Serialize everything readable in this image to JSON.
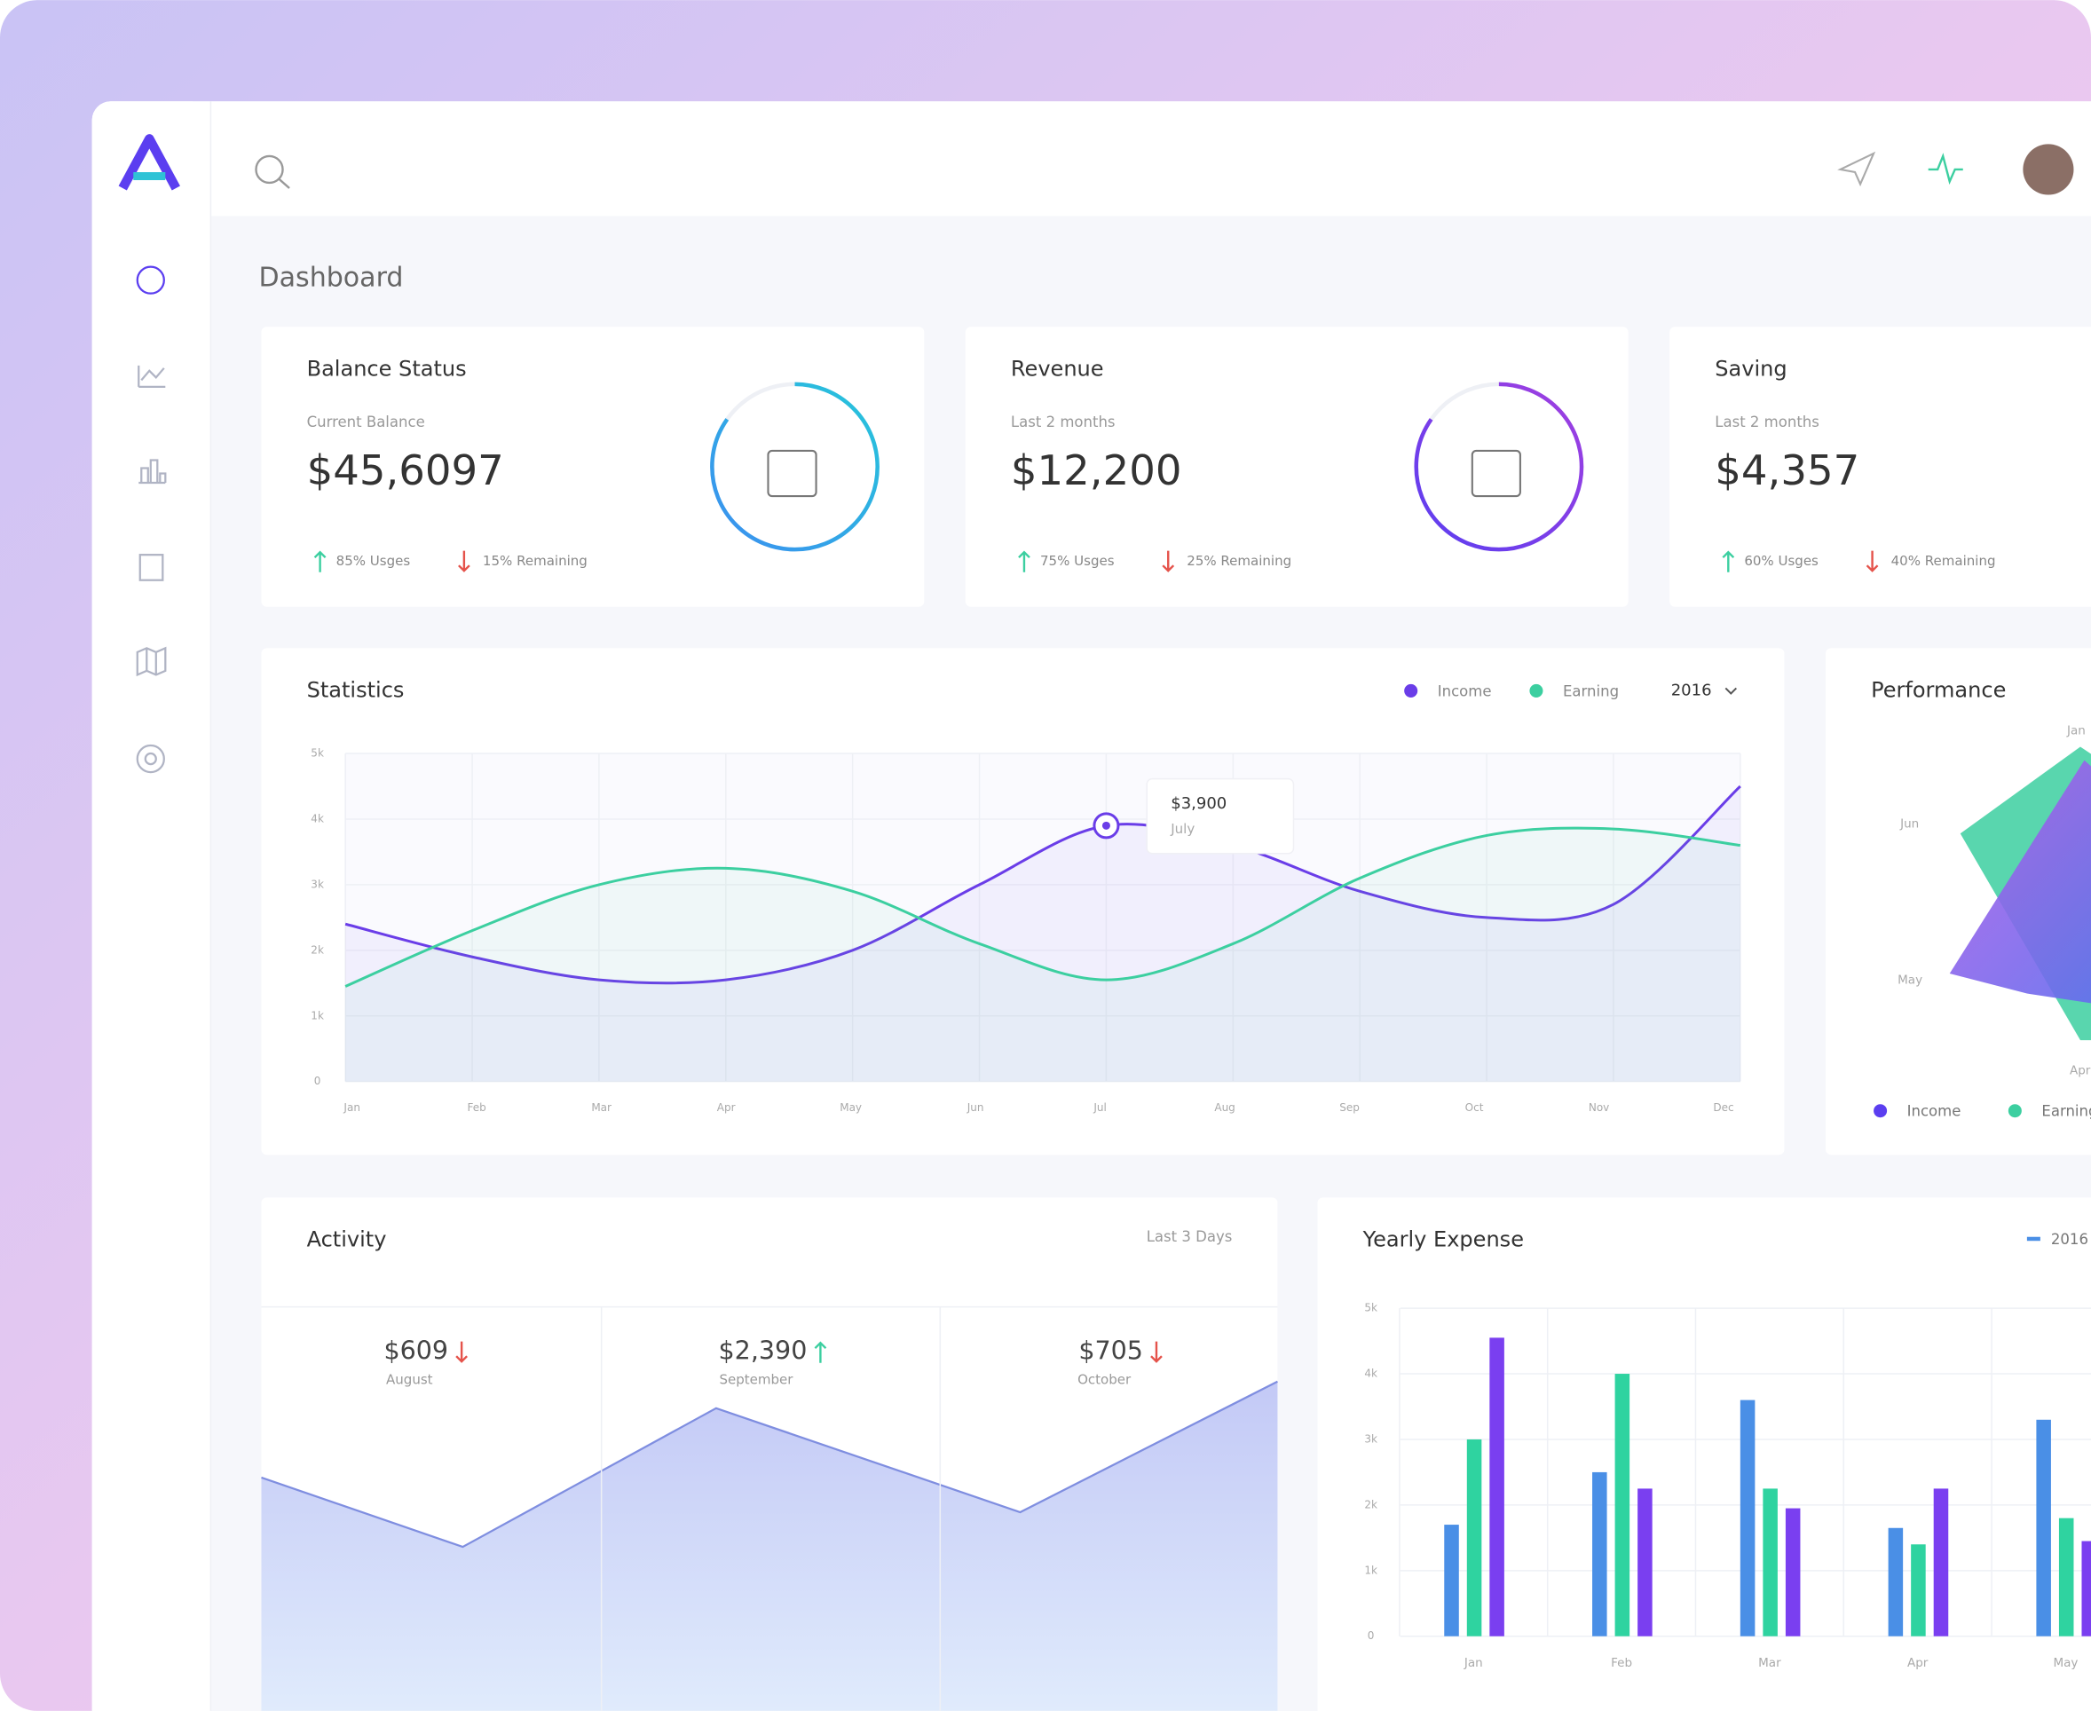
{
  "page_title": "Dashboard",
  "cards": [
    {
      "title": "Balance Status",
      "subtitle": "Current Balance",
      "value": "$45,6097",
      "usage": "85% Usges",
      "remaining": "15% Remaining"
    },
    {
      "title": "Revenue",
      "subtitle": "Last 2 months",
      "value": "$12,200",
      "usage": "75% Usges",
      "remaining": "25% Remaining"
    },
    {
      "title": "Saving",
      "subtitle": "Last 2 months",
      "value": "$4,357",
      "usage": "60% Usges",
      "remaining": "40% Remaining"
    }
  ],
  "statistics": {
    "title": "Statistics",
    "year": "2016",
    "tooltip": {
      "value": "$3,900",
      "label": "July"
    },
    "chart_data": {
      "type": "line",
      "categories": [
        "Jan",
        "Feb",
        "Mar",
        "Apr",
        "May",
        "Jun",
        "Jul",
        "Aug",
        "Sep",
        "Oct",
        "Nov",
        "Dec"
      ],
      "series": [
        {
          "name": "Income",
          "color": "#6a3de8",
          "values": [
            2400,
            1900,
            1550,
            1550,
            2000,
            3000,
            3900,
            3600,
            2900,
            2500,
            2700,
            4500
          ]
        },
        {
          "name": "Earning",
          "color": "#3ccfa0",
          "values": [
            1450,
            2300,
            3000,
            3250,
            2900,
            2100,
            1550,
            2100,
            3100,
            3750,
            3850,
            3600
          ]
        }
      ],
      "ylim": [
        0,
        5000
      ],
      "yticks": [
        0,
        {
          "value": 1000,
          "label": "1k"
        },
        {
          "value": 2000,
          "label": "2k"
        },
        {
          "value": 3000,
          "label": "3k"
        },
        {
          "value": 4000,
          "label": "4k"
        },
        {
          "value": 5000,
          "label": "5k"
        }
      ],
      "grid": true
    }
  },
  "performance": {
    "title": "Performance",
    "axis_labels": [
      "Jan",
      "Jun",
      "May",
      "Apr"
    ],
    "legend": [
      "Income",
      "Earning"
    ]
  },
  "activity": {
    "title": "Activity",
    "period": "Last 3 Days",
    "items": [
      {
        "value": "$609",
        "label": "August",
        "trend": "down"
      },
      {
        "value": "$2,390",
        "label": "September",
        "trend": "up"
      },
      {
        "value": "$705",
        "label": "October",
        "trend": "down"
      }
    ]
  },
  "yearly_expense": {
    "title": "Yearly Expense",
    "legend": "2016",
    "chart_data": {
      "type": "bar",
      "categories": [
        "Jan",
        "Feb",
        "Mar",
        "Apr",
        "May"
      ],
      "series": [
        {
          "color": "#4a8fe6",
          "values": [
            1700,
            2500,
            3600,
            1650,
            3300
          ]
        },
        {
          "color": "#2fd3a0",
          "values": [
            3000,
            4000,
            2250,
            1400,
            1800
          ]
        },
        {
          "color": "#7a3ff0",
          "values": [
            4550,
            2250,
            1950,
            2250,
            1450
          ]
        }
      ],
      "ylim": [
        0,
        5000
      ],
      "yticks": [
        0,
        {
          "value": 1000,
          "label": "1k"
        },
        {
          "value": 2000,
          "label": "2k"
        },
        {
          "value": 3000,
          "label": "3k"
        },
        {
          "value": 4000,
          "label": "4k"
        },
        {
          "value": 5000,
          "label": "5k"
        }
      ],
      "grid": true
    }
  }
}
